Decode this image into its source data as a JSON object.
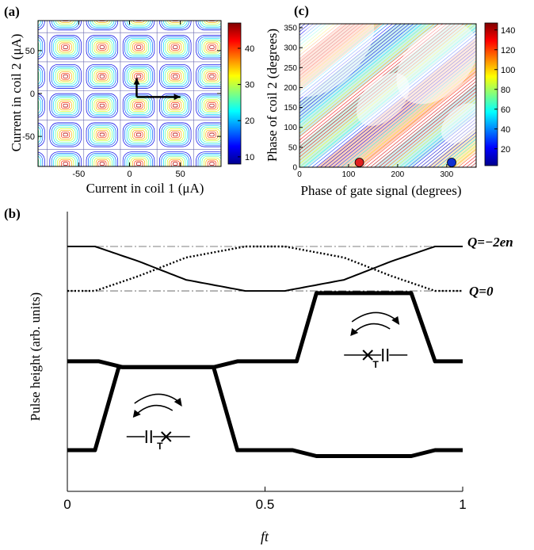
{
  "colors": {
    "colormap": [
      "#00008f",
      "#0000ff",
      "#0080ff",
      "#00ffff",
      "#80ff80",
      "#ffff00",
      "#ff8000",
      "#ff0000",
      "#800000"
    ],
    "contour_low": "#1a1aa0",
    "marker_red": "#e02020",
    "marker_blue": "#1030d0",
    "ink": "#000000"
  },
  "chart_data": [
    {
      "panel": "(a)",
      "type": "heatmap",
      "subtype": "contour",
      "xlabel": "Current in coil 1 (μA)",
      "ylabel": "Current in coil 2 (μA)",
      "xlim": [
        -90,
        90
      ],
      "ylim": [
        -85,
        85
      ],
      "xticks": [
        "-50",
        "0",
        "50"
      ],
      "xtick_values": [
        -50,
        0,
        50
      ],
      "yticks": [
        "50",
        "0",
        "-50"
      ],
      "ytick_values": [
        50,
        0,
        -50
      ],
      "colorbar": {
        "min": 8,
        "max": 47,
        "ticks": [
          "40",
          "30",
          "20",
          "10"
        ],
        "tick_values": [
          40,
          30,
          20,
          10
        ]
      },
      "grid_period_x": 36,
      "grid_period_y": 34,
      "arrows": [
        {
          "from": [
            7,
            -4
          ],
          "to": [
            50,
            -4
          ],
          "direction": "horizontal"
        },
        {
          "from": [
            7,
            -4
          ],
          "to": [
            7,
            18
          ],
          "direction": "vertical"
        }
      ]
    },
    {
      "panel": "(c)",
      "type": "heatmap",
      "subtype": "contour",
      "xlabel": "Phase of gate signal (degrees)",
      "ylabel": "Phase of coil 2 (degrees)",
      "xlim": [
        0,
        360
      ],
      "ylim": [
        0,
        360
      ],
      "xticks": [
        "0",
        "100",
        "200",
        "300"
      ],
      "xtick_values": [
        0,
        100,
        200,
        300
      ],
      "yticks": [
        "350",
        "300",
        "250",
        "200",
        "150",
        "100",
        "50",
        "0"
      ],
      "ytick_values": [
        350,
        300,
        250,
        200,
        150,
        100,
        50,
        0
      ],
      "colorbar": {
        "min": 3,
        "max": 147,
        "ticks": [
          "140",
          "120",
          "100",
          "80",
          "60",
          "40",
          "20"
        ],
        "tick_values": [
          140,
          120,
          100,
          80,
          60,
          40,
          20
        ]
      },
      "markers": [
        {
          "x": 122,
          "y": 12,
          "color": "red"
        },
        {
          "x": 310,
          "y": 12,
          "color": "blue"
        }
      ]
    },
    {
      "panel": "(b)",
      "type": "line",
      "xlabel": "ft",
      "ylabel": "Pulse height (arb. units)",
      "xlim": [
        0,
        1
      ],
      "xticks": [
        "0",
        "0.5",
        "1"
      ],
      "xtick_values": [
        0,
        0.5,
        1
      ],
      "levels": {
        "top": 4.55,
        "bottom": 3.95
      },
      "level_labels": [
        "Q=−2en",
        "Q=0"
      ],
      "series": [
        {
          "style": "thin-solid",
          "x": [
            0,
            0.07,
            0.18,
            0.3,
            0.45,
            0.55,
            0.7,
            0.82,
            0.93,
            1.0
          ],
          "y": [
            4.55,
            4.55,
            4.35,
            4.1,
            3.95,
            3.95,
            4.1,
            4.35,
            4.55,
            4.55
          ]
        },
        {
          "style": "thin-dotted",
          "x": [
            0,
            0.07,
            0.18,
            0.3,
            0.45,
            0.55,
            0.7,
            0.82,
            0.93,
            1.0
          ],
          "y": [
            3.95,
            3.95,
            4.15,
            4.4,
            4.55,
            4.55,
            4.4,
            4.15,
            3.95,
            3.95
          ]
        },
        {
          "style": "thick",
          "x": [
            0,
            0.08,
            0.14,
            0.37,
            0.43,
            0.58,
            0.63,
            0.87,
            0.93,
            1.0
          ],
          "y": [
            3.0,
            3.0,
            2.92,
            2.92,
            3.0,
            3.0,
            3.92,
            3.92,
            3.0,
            3.0
          ]
        },
        {
          "style": "thick",
          "x": [
            0,
            0.07,
            0.13,
            0.37,
            0.43,
            0.57,
            0.63,
            0.87,
            0.93,
            1.0
          ],
          "y": [
            1.8,
            1.8,
            2.92,
            2.92,
            1.8,
            1.8,
            1.72,
            1.72,
            1.8,
            1.8
          ]
        }
      ],
      "symbols": [
        {
          "position": "upper",
          "x": 0.78,
          "type": "junction-capacitor",
          "labels": [
            "T"
          ]
        },
        {
          "position": "lower",
          "x": 0.23,
          "type": "capacitor-junction",
          "labels": [
            "T"
          ]
        }
      ]
    }
  ],
  "labels": {
    "panel_a": "(a)",
    "panel_b": "(b)",
    "panel_c": "(c)"
  }
}
